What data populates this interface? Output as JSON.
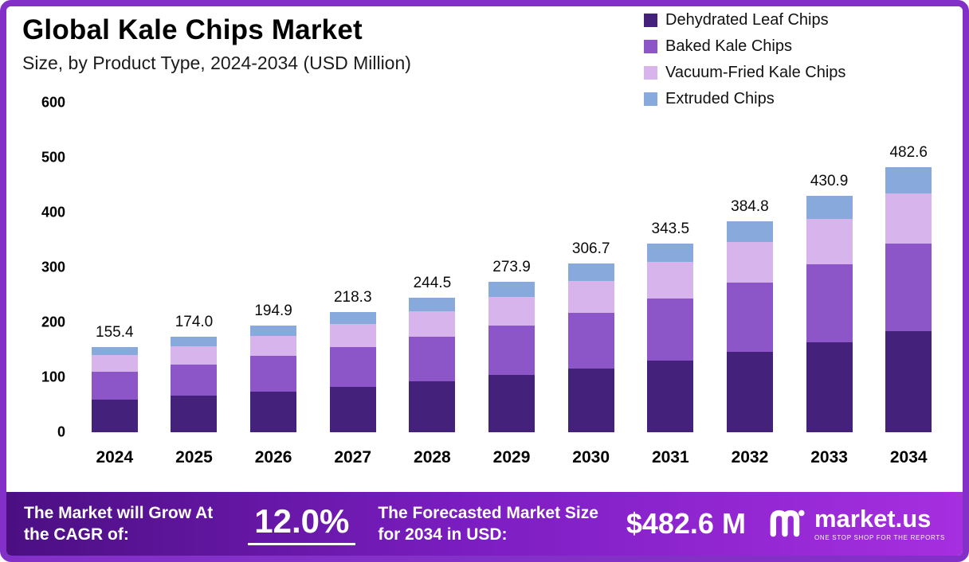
{
  "header": {
    "title": "Global Kale Chips Market",
    "subtitle": "Size, by Product Type, 2024-2034 (USD Million)"
  },
  "chart_data": {
    "type": "bar",
    "stacked": true,
    "title": "Global Kale Chips Market",
    "subtitle": "Size, by Product Type, 2024-2034 (USD Million)",
    "ylabel": "USD Million",
    "ylim": [
      0,
      600
    ],
    "yticks": [
      0,
      100,
      200,
      300,
      400,
      500,
      600
    ],
    "grid": false,
    "legend_position": "top-right",
    "categories": [
      "2024",
      "2025",
      "2026",
      "2027",
      "2028",
      "2029",
      "2030",
      "2031",
      "2032",
      "2033",
      "2034"
    ],
    "totals": [
      "155.4",
      "174.0",
      "194.9",
      "218.3",
      "244.5",
      "273.9",
      "306.7",
      "343.5",
      "384.8",
      "430.9",
      "482.6"
    ],
    "series": [
      {
        "name": "Dehydrated Leaf Chips",
        "color": "#44217a",
        "values": [
          59.0,
          66.0,
          74.0,
          83.0,
          93.0,
          104.0,
          116.5,
          130.5,
          146.0,
          163.5,
          183.5
        ]
      },
      {
        "name": "Baked Kale Chips",
        "color": "#8c55c8",
        "values": [
          51.5,
          57.5,
          64.5,
          72.0,
          80.5,
          90.5,
          101.0,
          113.5,
          127.0,
          142.5,
          159.5
        ]
      },
      {
        "name": "Vacuum-Fried Kale Chips",
        "color": "#d7b4ec",
        "values": [
          29.5,
          33.0,
          37.0,
          41.5,
          46.5,
          52.0,
          58.5,
          65.5,
          73.5,
          82.0,
          92.0
        ]
      },
      {
        "name": "Extruded Chips",
        "color": "#87a9dc",
        "values": [
          15.4,
          17.5,
          19.4,
          21.8,
          24.5,
          27.4,
          30.7,
          34.0,
          38.3,
          42.9,
          47.6
        ]
      }
    ]
  },
  "footer": {
    "cagr_label": "The Market will Grow At the CAGR of:",
    "cagr_value": "12.0%",
    "forecast_label": "The Forecasted Market Size for 2034 in USD:",
    "forecast_value": "$482.6 M",
    "brand": "market.us",
    "brand_tagline": "ONE STOP SHOP FOR THE REPORTS"
  }
}
